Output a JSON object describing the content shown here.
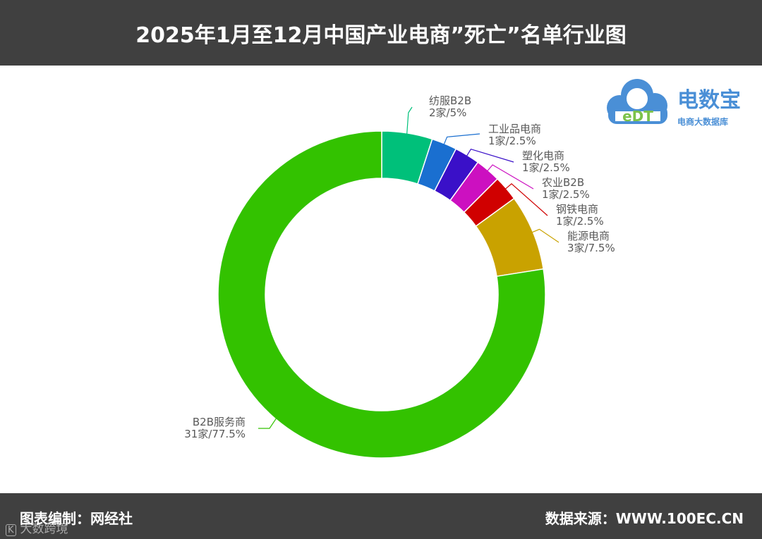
{
  "title": "2025年1月至12月中国产业电商”死亡”名单行业图",
  "footer": {
    "source_left": "图表编制：网经社",
    "source_right": "数据来源：WWW.100EC.CN",
    "watermark_mark": "K",
    "watermark": "大数跨境"
  },
  "logo": {
    "mark": "eDT",
    "name": "电数宝",
    "subtitle": "电商大数据库",
    "color": "#4a8fd6"
  },
  "chart_data": {
    "type": "pie",
    "donut": true,
    "title": "",
    "slices": [
      {
        "name": "纺服B2B",
        "count_label": "2家/5%",
        "value": 2,
        "percent": 5,
        "color": "#00c07a"
      },
      {
        "name": "工业品电商",
        "count_label": "1家/2.5%",
        "value": 1,
        "percent": 2.5,
        "color": "#1a6fd0"
      },
      {
        "name": "塑化电商",
        "count_label": "1家/2.5%",
        "value": 1,
        "percent": 2.5,
        "color": "#3a10c8"
      },
      {
        "name": "农业B2B",
        "count_label": "1家/2.5%",
        "value": 1,
        "percent": 2.5,
        "color": "#cc10c0"
      },
      {
        "name": "钢铁电商",
        "count_label": "1家/2.5%",
        "value": 1,
        "percent": 2.5,
        "color": "#d00000"
      },
      {
        "name": "能源电商",
        "count_label": "3家/7.5%",
        "value": 3,
        "percent": 7.5,
        "color": "#c9a200"
      },
      {
        "name": "B2B服务商",
        "count_label": "31家/77.5%",
        "value": 31,
        "percent": 77.5,
        "color": "#33c200"
      }
    ]
  }
}
